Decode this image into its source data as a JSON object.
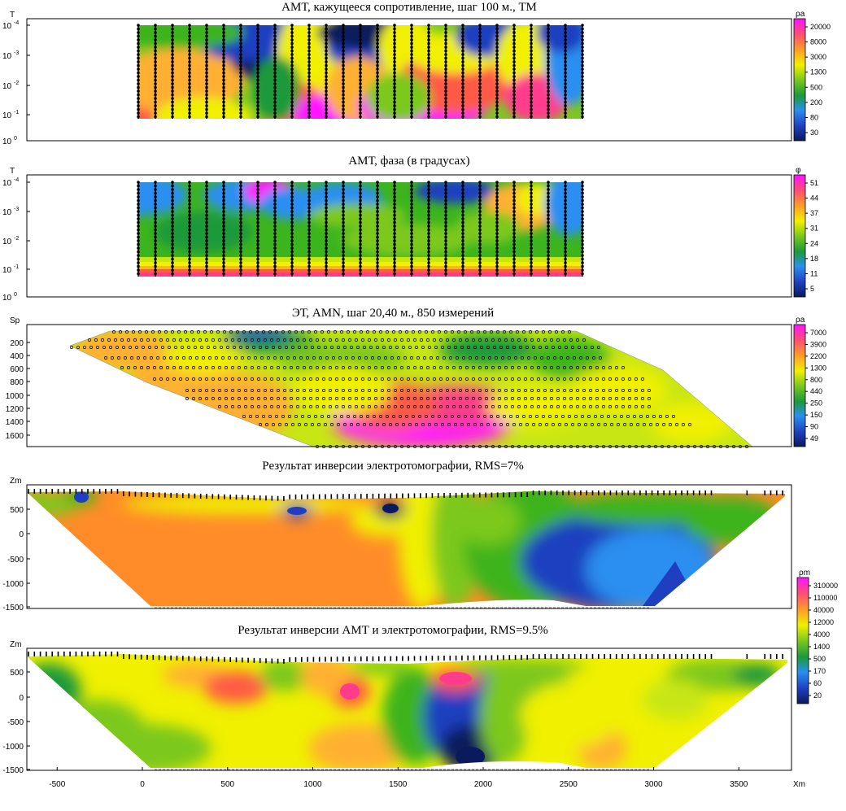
{
  "chart_data": [
    {
      "id": "p1",
      "type": "heatmap",
      "title": "АМТ, кажущееся сопротивление, шаг 100 м., ТМ",
      "ylabel": "T",
      "y_ticks": [
        "10",
        "10",
        "10",
        "10",
        "10"
      ],
      "y_exponents": [
        "-4",
        "-3",
        "-2",
        "-1",
        "0"
      ],
      "colorbar_label": "ρa",
      "colorbar_ticks": [
        "20000",
        "8000",
        "3000",
        "1300",
        "500",
        "200",
        "80",
        "30"
      ]
    },
    {
      "id": "p2",
      "type": "heatmap",
      "title": "АМТ, фаза (в градусах)",
      "ylabel": "T",
      "y_ticks": [
        "10",
        "10",
        "10",
        "10",
        "10"
      ],
      "y_exponents": [
        "-4",
        "-3",
        "-2",
        "-1",
        "0"
      ],
      "colorbar_label": "φ",
      "colorbar_ticks": [
        "51",
        "44",
        "37",
        "31",
        "24",
        "18",
        "11",
        "5"
      ]
    },
    {
      "id": "p3",
      "type": "heatmap",
      "title": "ЭТ,  AMN, шаг 20,40 м., 850 измерений",
      "ylabel": "Sp",
      "y_ticks": [
        "200",
        "400",
        "600",
        "800",
        "1000",
        "1200",
        "1400",
        "1600"
      ],
      "colorbar_label": "ρa",
      "colorbar_ticks": [
        "7000",
        "3900",
        "2200",
        "1300",
        "800",
        "440",
        "250",
        "150",
        "90",
        "49"
      ]
    },
    {
      "id": "p4",
      "type": "heatmap",
      "title": "Результат инверсии электротомографии, RMS=7%",
      "ylabel": "Zm",
      "y_ticks": [
        "500",
        "0",
        "-500",
        "-1000",
        "-1500"
      ]
    },
    {
      "id": "p5",
      "type": "heatmap",
      "title": "Результат инверсии АМТ и электротомографии, RMS=9.5%",
      "ylabel": "Zm",
      "y_ticks": [
        "500",
        "0",
        "-500",
        "-1000",
        "-1500"
      ],
      "xlabel": "Xm",
      "x_ticks": [
        "-500",
        "0",
        "500",
        "1000",
        "1500",
        "2000",
        "2500",
        "3000",
        "3500"
      ],
      "colorbar_label": "ρm",
      "colorbar_ticks": [
        "310000",
        "110000",
        "40000",
        "12000",
        "4000",
        "1400",
        "500",
        "170",
        "60",
        "20"
      ]
    }
  ]
}
